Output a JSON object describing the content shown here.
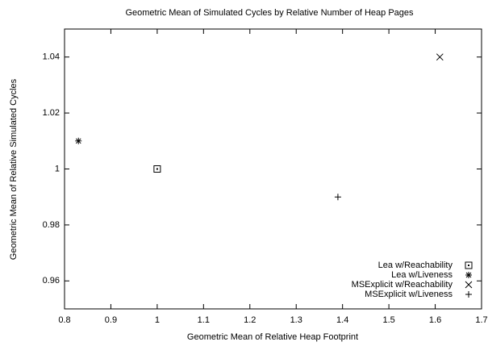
{
  "chart_data": {
    "type": "scatter",
    "title": "Geometric Mean of Simulated Cycles by Relative Number of Heap Pages",
    "x_label": "Geometric Mean of Relative Heap Footprint",
    "y_label": "Geometric Mean of Relative Simulated Cycles",
    "series": [
      {
        "name": "Lea w/Reachability",
        "color": "#000000",
        "marker": "square",
        "x": [
          1.0
        ],
        "values": [
          1.0
        ]
      },
      {
        "name": "Lea w/Liveness",
        "color": "#000000",
        "marker": "asterisk",
        "x": [
          0.83
        ],
        "values": [
          1.01
        ]
      },
      {
        "name": "MSExplicit w/Reachability",
        "color": "#000000",
        "marker": "cross",
        "x": [
          1.61
        ],
        "values": [
          1.04
        ]
      },
      {
        "name": "MSExplicit w/Liveness",
        "color": "#000000",
        "marker": "plus",
        "x": [
          1.39
        ],
        "values": [
          0.99
        ]
      }
    ],
    "xlim": [
      0.8,
      1.7
    ],
    "xticks": [
      0.8,
      0.9,
      1,
      1.1,
      1.2,
      1.3,
      1.4,
      1.5,
      1.6,
      1.7
    ],
    "ylim": [
      0.95,
      1.05
    ],
    "yticks": [
      0.96,
      0.98,
      1,
      1.02,
      1.04
    ],
    "grid": false,
    "legend": "bottom-right"
  }
}
